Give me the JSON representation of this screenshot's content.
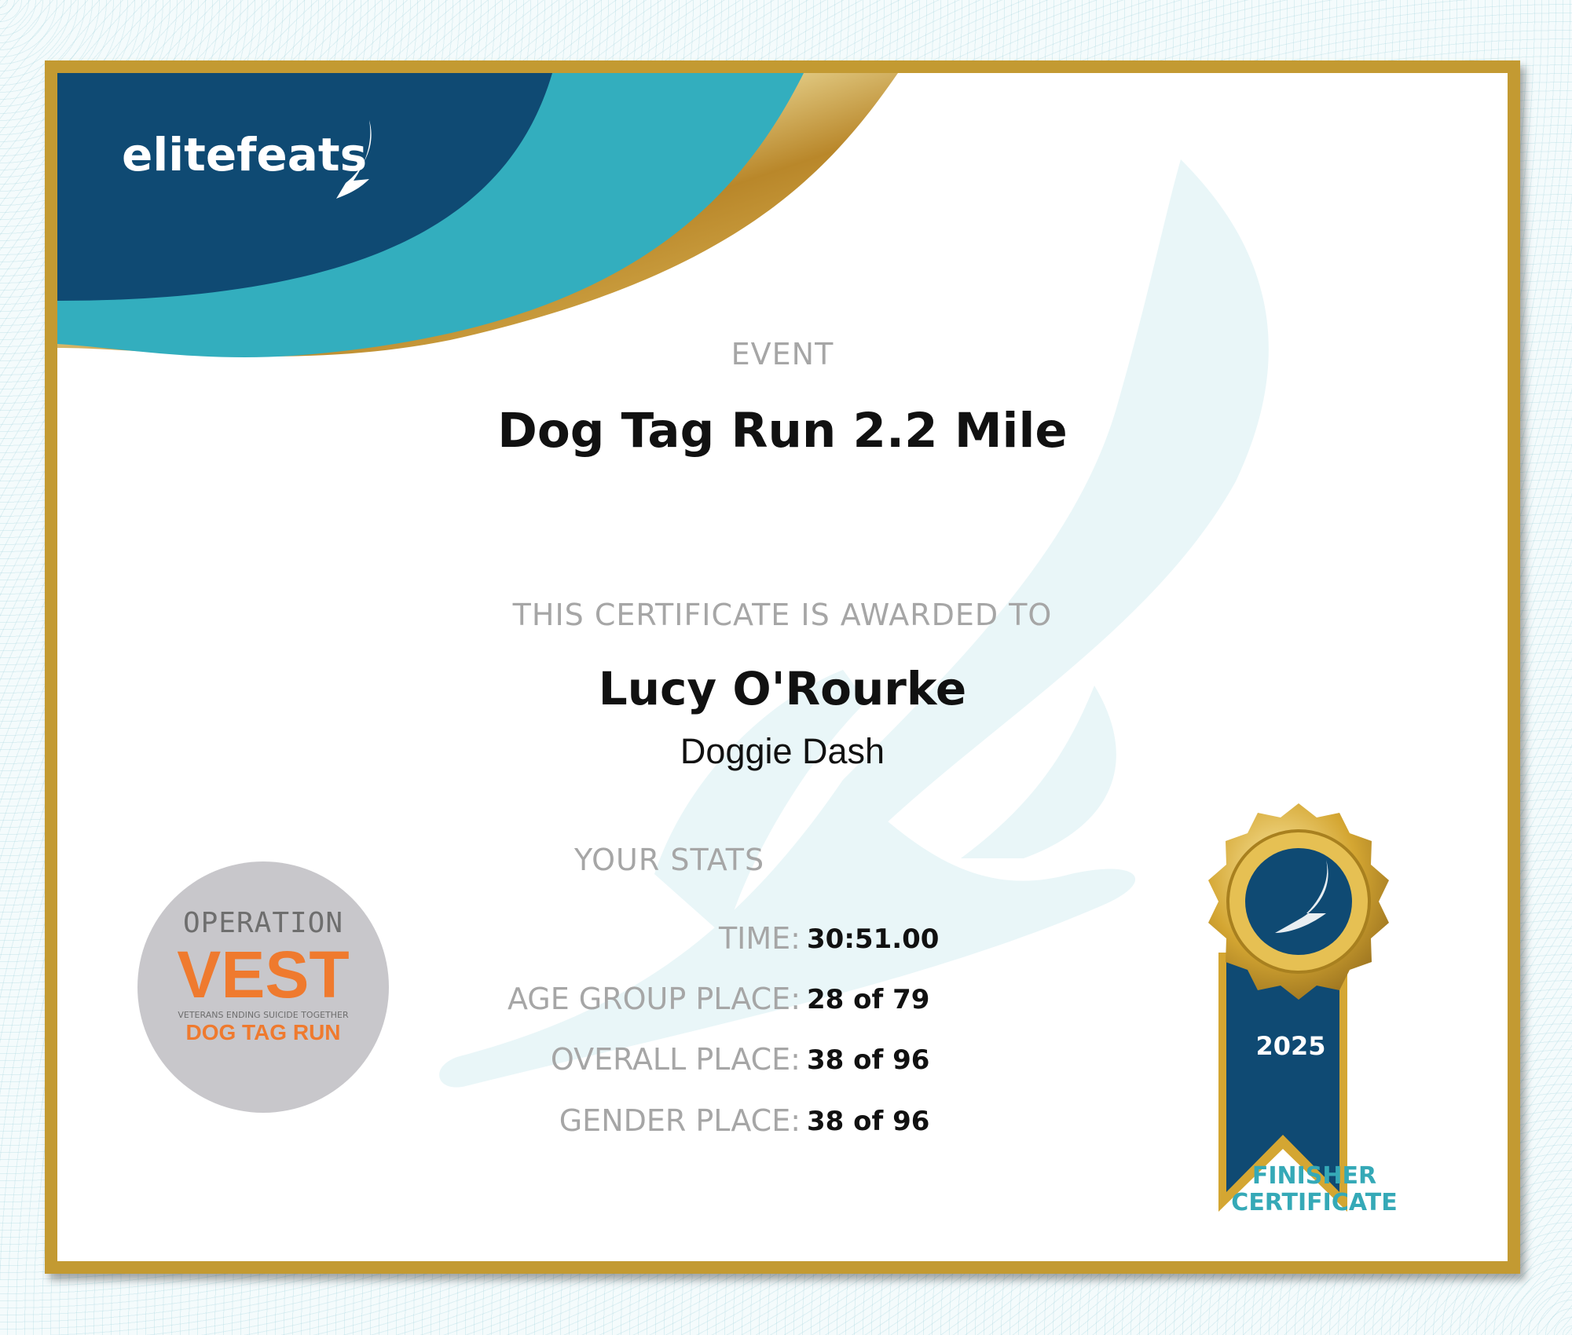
{
  "brand": {
    "name": "elitefeats",
    "logo_icon": "winged-foot-icon"
  },
  "colors": {
    "navy": "#0f4a73",
    "teal": "#33aebe",
    "gold": "#c39a32",
    "label_gray": "#a6a6a6"
  },
  "event": {
    "label": "EVENT",
    "title": "Dog Tag Run 2.2 Mile"
  },
  "award": {
    "label": "THIS CERTIFICATE IS AWARDED TO",
    "name": "Lucy O'Rourke",
    "division": "Doggie Dash"
  },
  "stats": {
    "label": "YOUR STATS",
    "rows": [
      {
        "label": "TIME:",
        "value": "30:51.00"
      },
      {
        "label": "AGE GROUP PLACE:",
        "value": "28 of 79"
      },
      {
        "label": "OVERALL PLACE:",
        "value": "38 of 96"
      },
      {
        "label": "GENDER PLACE:",
        "value": "38 of 96"
      }
    ]
  },
  "sponsor_logo": {
    "line1": "OPERATION",
    "line2": "VEST",
    "tagline": "VETERANS ENDING SUICIDE TOGETHER",
    "line3": "DOG TAG RUN"
  },
  "medal": {
    "year": "2025",
    "caption_line1": "FINISHER",
    "caption_line2": "CERTIFICATE"
  }
}
